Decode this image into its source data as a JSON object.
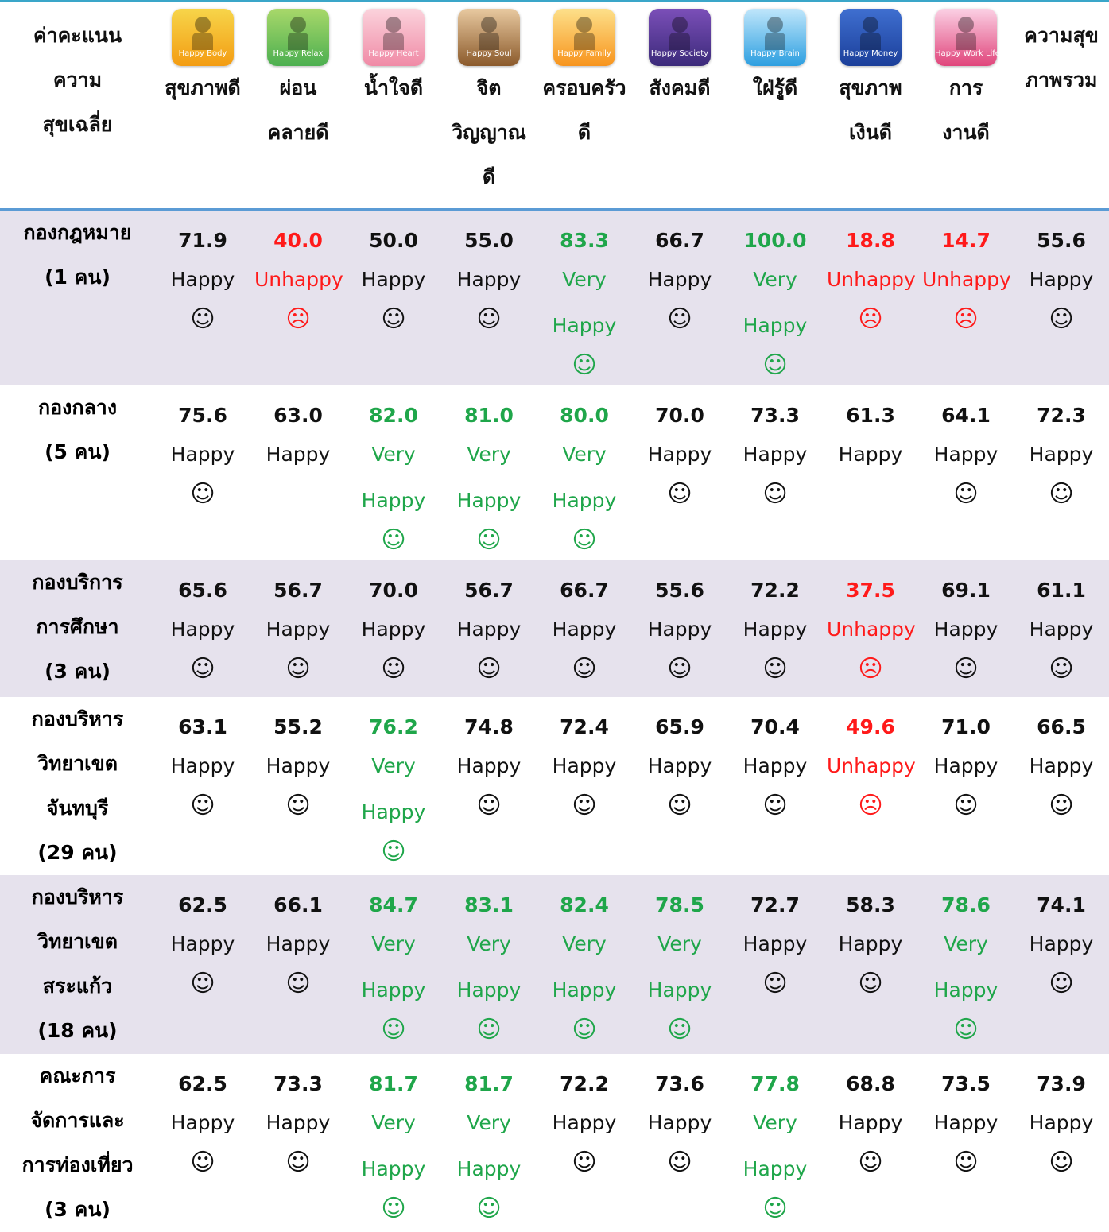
{
  "status_colors": {
    "Happy": "#111111",
    "Very Happy": "#1fa64a",
    "Unhappy": "#ff1a1a"
  },
  "header": {
    "corner": [
      "ค่าคะแนน",
      "ความ",
      "สุขเฉลี่ย"
    ],
    "columns": [
      {
        "icon": "Happy Body",
        "label": [
          "สุขภาพดี"
        ]
      },
      {
        "icon": "Happy Relax",
        "label": [
          "ผ่อน",
          "คลายดี"
        ]
      },
      {
        "icon": "Happy Heart",
        "label": [
          "น้ำใจดี"
        ]
      },
      {
        "icon": "Happy Soul",
        "label": [
          "จิต",
          "วิญญาณ",
          "ดี"
        ]
      },
      {
        "icon": "Happy Family",
        "label": [
          "ครอบครัว",
          "ดี"
        ]
      },
      {
        "icon": "Happy Society",
        "label": [
          "สังคมดี"
        ]
      },
      {
        "icon": "Happy Brain",
        "label": [
          "ใฝ่รู้ดี"
        ]
      },
      {
        "icon": "Happy Money",
        "label": [
          "สุขภาพ",
          "เงินดี"
        ]
      },
      {
        "icon": "Happy Work Life",
        "label": [
          "การ",
          "งานดี"
        ]
      }
    ],
    "last": [
      "ความสุข",
      "ภาพรวม"
    ]
  },
  "table": {
    "rows": [
      {
        "name": [
          "กองกฎหมาย",
          "(1 คน)"
        ],
        "cells": [
          {
            "score": "71.9",
            "status": "Happy",
            "face": "☺"
          },
          {
            "score": "40.0",
            "status": "Unhappy",
            "face": "☹"
          },
          {
            "score": "50.0",
            "status": "Happy",
            "face": "☺"
          },
          {
            "score": "55.0",
            "status": "Happy",
            "face": "☺"
          },
          {
            "score": "83.3",
            "status": "Very Happy",
            "face": "☺"
          },
          {
            "score": "66.7",
            "status": "Happy",
            "face": "☺"
          },
          {
            "score": "100.0",
            "status": "Very Happy",
            "face": "☺"
          },
          {
            "score": "18.8",
            "status": "Unhappy",
            "face": "☹"
          },
          {
            "score": "14.7",
            "status": "Unhappy",
            "face": "☹"
          },
          {
            "score": "55.6",
            "status": "Happy",
            "face": "☺"
          }
        ]
      },
      {
        "name": [
          "กองกลาง",
          "(5 คน)"
        ],
        "cells": [
          {
            "score": "75.6",
            "status": "Happy",
            "face": "☺"
          },
          {
            "score": "63.0",
            "status": "Happy"
          },
          {
            "score": "82.0",
            "status": "Very Happy",
            "face": "☺"
          },
          {
            "score": "81.0",
            "status": "Very Happy",
            "face": "☺"
          },
          {
            "score": "80.0",
            "status": "Very Happy",
            "face": "☺"
          },
          {
            "score": "70.0",
            "status": "Happy",
            "face": "☺"
          },
          {
            "score": "73.3",
            "status": "Happy",
            "face": "☺"
          },
          {
            "score": "61.3",
            "status": "Happy"
          },
          {
            "score": "64.1",
            "status": "Happy",
            "face": "☺"
          },
          {
            "score": "72.3",
            "status": "Happy",
            "face": "☺"
          }
        ]
      },
      {
        "name": [
          "กองบริการ",
          "การศึกษา",
          "(3 คน)"
        ],
        "cells": [
          {
            "score": "65.6",
            "status": "Happy",
            "face": "☺"
          },
          {
            "score": "56.7",
            "status": "Happy",
            "face": "☺"
          },
          {
            "score": "70.0",
            "status": "Happy",
            "face": "☺"
          },
          {
            "score": "56.7",
            "status": "Happy",
            "face": "☺"
          },
          {
            "score": "66.7",
            "status": "Happy",
            "face": "☺"
          },
          {
            "score": "55.6",
            "status": "Happy",
            "face": "☺"
          },
          {
            "score": "72.2",
            "status": "Happy",
            "face": "☺"
          },
          {
            "score": "37.5",
            "status": "Unhappy",
            "face": "☹"
          },
          {
            "score": "69.1",
            "status": "Happy",
            "face": "☺"
          },
          {
            "score": "61.1",
            "status": "Happy",
            "face": "☺"
          }
        ]
      },
      {
        "name": [
          "กองบริหาร",
          "วิทยาเขต",
          "จันทบุรี",
          "(29 คน)"
        ],
        "cells": [
          {
            "score": "63.1",
            "status": "Happy",
            "face": "☺"
          },
          {
            "score": "55.2",
            "status": "Happy",
            "face": "☺"
          },
          {
            "score": "76.2",
            "status": "Very Happy",
            "face": "☺"
          },
          {
            "score": "74.8",
            "status": "Happy",
            "face": "☺"
          },
          {
            "score": "72.4",
            "status": "Happy",
            "face": "☺"
          },
          {
            "score": "65.9",
            "status": "Happy",
            "face": "☺"
          },
          {
            "score": "70.4",
            "status": "Happy",
            "face": "☺"
          },
          {
            "score": "49.6",
            "status": "Unhappy",
            "face": "☹"
          },
          {
            "score": "71.0",
            "status": "Happy",
            "face": "☺"
          },
          {
            "score": "66.5",
            "status": "Happy",
            "face": "☺"
          }
        ]
      },
      {
        "name": [
          "กองบริหาร",
          "วิทยาเขต",
          "สระแก้ว",
          "(18 คน)"
        ],
        "cells": [
          {
            "score": "62.5",
            "status": "Happy",
            "face": "☺"
          },
          {
            "score": "66.1",
            "status": "Happy",
            "face": "☺"
          },
          {
            "score": "84.7",
            "status": "Very Happy",
            "face": "☺"
          },
          {
            "score": "83.1",
            "status": "Very Happy",
            "face": "☺"
          },
          {
            "score": "82.4",
            "status": "Very Happy",
            "face": "☺"
          },
          {
            "score": "78.5",
            "status": "Very Happy",
            "face": "☺"
          },
          {
            "score": "72.7",
            "status": "Happy",
            "face": "☺"
          },
          {
            "score": "58.3",
            "status": "Happy",
            "face": "☺"
          },
          {
            "score": "78.6",
            "status": "Very Happy",
            "face": "☺"
          },
          {
            "score": "74.1",
            "status": "Happy",
            "face": "☺"
          }
        ]
      },
      {
        "name": [
          "คณะการ",
          "จัดการและ",
          "การท่องเที่ยว",
          "(3 คน)"
        ],
        "cells": [
          {
            "score": "62.5",
            "status": "Happy",
            "face": "☺"
          },
          {
            "score": "73.3",
            "status": "Happy",
            "face": "☺"
          },
          {
            "score": "81.7",
            "status": "Very Happy",
            "face": "☺"
          },
          {
            "score": "81.7",
            "status": "Very Happy",
            "face": "☺"
          },
          {
            "score": "72.2",
            "status": "Happy",
            "face": "☺"
          },
          {
            "score": "73.6",
            "status": "Happy",
            "face": "☺"
          },
          {
            "score": "77.8",
            "status": "Very Happy",
            "face": "☺"
          },
          {
            "score": "68.8",
            "status": "Happy",
            "face": "☺"
          },
          {
            "score": "73.5",
            "status": "Happy",
            "face": "☺"
          },
          {
            "score": "73.9",
            "status": "Happy",
            "face": "☺"
          }
        ]
      }
    ]
  }
}
